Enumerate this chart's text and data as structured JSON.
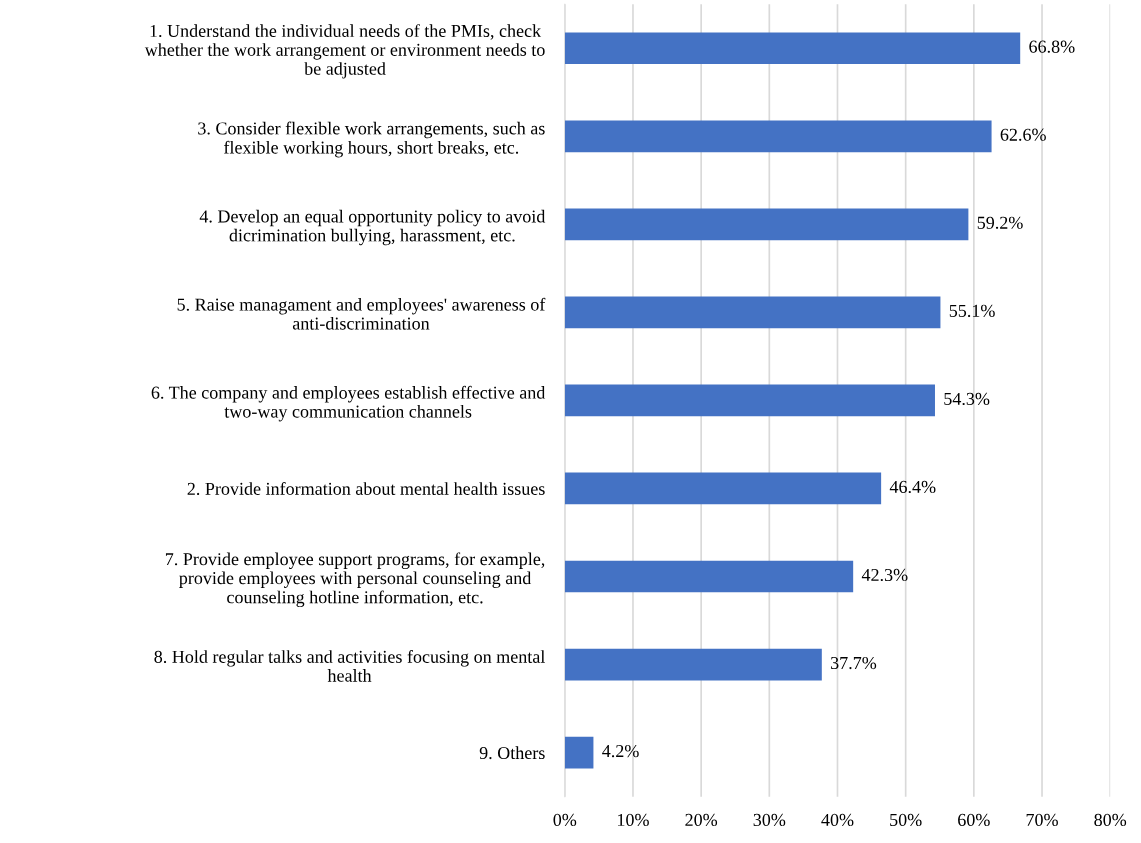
{
  "chart_data": {
    "type": "bar",
    "orientation": "horizontal",
    "categories": [
      "1. Understand the individual needs of the PMIs, check\nwhether the work arrangement or environment needs to\nbe adjusted",
      "3. Consider flexible work arrangements, such as\nflexible working hours, short breaks, etc.",
      "4. Develop an equal opportunity policy to avoid\ndicrimination bullying, harassment, etc.",
      "5. Raise managament and employees' awareness of\nanti-discrimination",
      "6. The company and employees establish effective and\ntwo-way communication channels",
      "2. Provide information about mental health issues",
      "7. Provide employee support programs, for example,\nprovide employees with personal counseling and\ncounseling hotline information, etc.",
      "8. Hold regular talks and activities focusing on mental\nhealth",
      "9. Others"
    ],
    "values": [
      66.8,
      62.6,
      59.2,
      55.1,
      54.3,
      46.4,
      42.3,
      37.7,
      4.2
    ],
    "value_labels": [
      "66.8%",
      "62.6%",
      "59.2%",
      "55.1%",
      "54.3%",
      "46.4%",
      "42.3%",
      "37.7%",
      "4.2%"
    ],
    "color": "#4472c4",
    "xlim": [
      0,
      80
    ],
    "xticks": [
      {
        "value": 0,
        "label": "0%"
      },
      {
        "value": 10,
        "label": "10%"
      },
      {
        "value": 20,
        "label": "20%"
      },
      {
        "value": 30,
        "label": "30%"
      },
      {
        "value": 40,
        "label": "40%"
      },
      {
        "value": 50,
        "label": "50%"
      },
      {
        "value": 60,
        "label": "60%"
      },
      {
        "value": 70,
        "label": "70%"
      },
      {
        "value": 80,
        "label": "80%"
      }
    ],
    "grid": "x"
  }
}
